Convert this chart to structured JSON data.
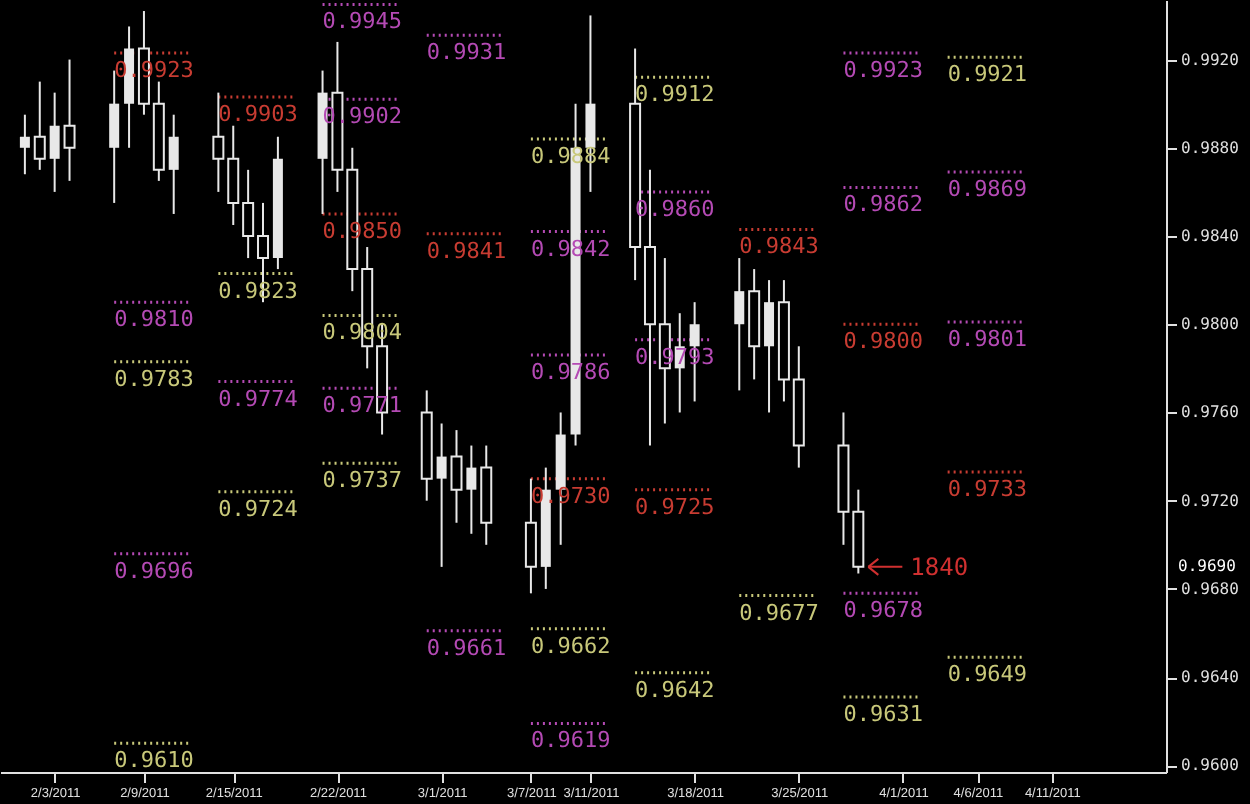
{
  "chart_data": {
    "type": "candlestick",
    "color": "#e8e8e8",
    "x": [
      "2011-02-01",
      "2011-02-02",
      "2011-02-03",
      "2011-02-04",
      "2011-02-07",
      "2011-02-08",
      "2011-02-09",
      "2011-02-10",
      "2011-02-11",
      "2011-02-14",
      "2011-02-15",
      "2011-02-16",
      "2011-02-17",
      "2011-02-18",
      "2011-02-21",
      "2011-02-22",
      "2011-02-23",
      "2011-02-24",
      "2011-02-25",
      "2011-02-28",
      "2011-03-01",
      "2011-03-02",
      "2011-03-03",
      "2011-03-04",
      "2011-03-07",
      "2011-03-08",
      "2011-03-09",
      "2011-03-10",
      "2011-03-11",
      "2011-03-14",
      "2011-03-15",
      "2011-03-16",
      "2011-03-17",
      "2011-03-18",
      "2011-03-21",
      "2011-03-22",
      "2011-03-23",
      "2011-03-24",
      "2011-03-25",
      "2011-03-28",
      "2011-03-29"
    ],
    "ohlc": [
      [
        0.988,
        0.9895,
        0.9868,
        0.9885
      ],
      [
        0.9885,
        0.991,
        0.987,
        0.9875
      ],
      [
        0.9875,
        0.9905,
        0.986,
        0.989
      ],
      [
        0.989,
        0.992,
        0.9865,
        0.988
      ],
      [
        0.988,
        0.9915,
        0.9855,
        0.99
      ],
      [
        0.99,
        0.9935,
        0.988,
        0.9925
      ],
      [
        0.9925,
        0.9942,
        0.9895,
        0.99
      ],
      [
        0.99,
        0.991,
        0.9865,
        0.987
      ],
      [
        0.987,
        0.9895,
        0.985,
        0.9885
      ],
      [
        0.9885,
        0.9905,
        0.986,
        0.9875
      ],
      [
        0.9875,
        0.989,
        0.9845,
        0.9855
      ],
      [
        0.9855,
        0.987,
        0.983,
        0.984
      ],
      [
        0.984,
        0.9855,
        0.981,
        0.983
      ],
      [
        0.983,
        0.9885,
        0.9825,
        0.9875
      ],
      [
        0.9875,
        0.9915,
        0.985,
        0.9905
      ],
      [
        0.9905,
        0.9928,
        0.986,
        0.987
      ],
      [
        0.987,
        0.988,
        0.9815,
        0.9825
      ],
      [
        0.9825,
        0.9835,
        0.978,
        0.979
      ],
      [
        0.979,
        0.98,
        0.975,
        0.976
      ],
      [
        0.976,
        0.977,
        0.972,
        0.973
      ],
      [
        0.973,
        0.9755,
        0.969,
        0.974
      ],
      [
        0.974,
        0.9752,
        0.971,
        0.9725
      ],
      [
        0.9725,
        0.9745,
        0.9705,
        0.9735
      ],
      [
        0.9735,
        0.9745,
        0.97,
        0.971
      ],
      [
        0.971,
        0.973,
        0.9678,
        0.969
      ],
      [
        0.969,
        0.9735,
        0.968,
        0.9725
      ],
      [
        0.9725,
        0.976,
        0.97,
        0.975
      ],
      [
        0.975,
        0.99,
        0.9745,
        0.988
      ],
      [
        0.988,
        0.994,
        0.986,
        0.99
      ],
      [
        0.99,
        0.9925,
        0.982,
        0.9835
      ],
      [
        0.9835,
        0.987,
        0.9745,
        0.98
      ],
      [
        0.98,
        0.983,
        0.9755,
        0.978
      ],
      [
        0.978,
        0.9805,
        0.976,
        0.979
      ],
      [
        0.979,
        0.981,
        0.9765,
        0.98
      ],
      [
        0.98,
        0.983,
        0.977,
        0.9815
      ],
      [
        0.9815,
        0.9825,
        0.9775,
        0.979
      ],
      [
        0.979,
        0.982,
        0.976,
        0.981
      ],
      [
        0.981,
        0.982,
        0.9765,
        0.9775
      ],
      [
        0.9775,
        0.979,
        0.9735,
        0.9745
      ],
      [
        0.9745,
        0.976,
        0.97,
        0.9715
      ],
      [
        0.9715,
        0.9725,
        0.9687,
        0.969
      ]
    ],
    "xlim": [
      "2011-01-31",
      "2011-04-18"
    ],
    "xticks": [
      {
        "value": "2011-02-03",
        "label": "2/3/2011"
      },
      {
        "value": "2011-02-09",
        "label": "2/9/2011"
      },
      {
        "value": "2011-02-15",
        "label": "2/15/2011"
      },
      {
        "value": "2011-02-22",
        "label": "2/22/2011"
      },
      {
        "value": "2011-03-01",
        "label": "3/1/2011"
      },
      {
        "value": "2011-03-07",
        "label": "3/7/2011"
      },
      {
        "value": "2011-03-11",
        "label": "3/11/2011"
      },
      {
        "value": "2011-03-18",
        "label": "3/18/2011"
      },
      {
        "value": "2011-03-25",
        "label": "3/25/2011"
      },
      {
        "value": "2011-04-01",
        "label": "4/1/2011"
      },
      {
        "value": "2011-04-06",
        "label": "4/6/2011"
      },
      {
        "value": "2011-04-11",
        "label": "4/11/2011"
      }
    ],
    "ylim": [
      0.9597,
      0.9947
    ],
    "yticks": [
      {
        "value": 0.96,
        "label": "0.9600"
      },
      {
        "value": 0.964,
        "label": "0.9640"
      },
      {
        "value": 0.968,
        "label": "0.9680"
      },
      {
        "value": 0.972,
        "label": "0.9720"
      },
      {
        "value": 0.976,
        "label": "0.9760"
      },
      {
        "value": 0.98,
        "label": "0.9800"
      },
      {
        "value": 0.984,
        "label": "0.9840"
      },
      {
        "value": 0.988,
        "label": "0.9880"
      },
      {
        "value": 0.992,
        "label": "0.9920"
      }
    ],
    "grid": false,
    "series": [
      {
        "type": "line",
        "line_style": "dotted",
        "color": "#c83c32",
        "x": [
          "2011-02-07",
          "2011-02-12"
        ],
        "values": [
          0.9923,
          0.9923
        ],
        "value_labels": [
          "0.9923",
          null
        ]
      },
      {
        "type": "line",
        "line_style": "dotted",
        "color": "#b44ab4",
        "x": [
          "2011-02-07",
          "2011-02-12"
        ],
        "values": [
          0.981,
          0.981
        ],
        "value_labels": [
          "0.9810",
          null
        ]
      },
      {
        "type": "line",
        "line_style": "dotted",
        "color": "#c8c87a",
        "x": [
          "2011-02-07",
          "2011-02-12"
        ],
        "values": [
          0.9783,
          0.9783
        ],
        "value_labels": [
          "0.9783",
          null
        ]
      },
      {
        "type": "line",
        "line_style": "dotted",
        "color": "#b44ab4",
        "x": [
          "2011-02-07",
          "2011-02-12"
        ],
        "values": [
          0.9696,
          0.9696
        ],
        "value_labels": [
          "0.9696",
          null
        ]
      },
      {
        "type": "line",
        "line_style": "dotted",
        "color": "#c8c87a",
        "x": [
          "2011-02-07",
          "2011-02-12"
        ],
        "values": [
          0.961,
          0.961
        ],
        "value_labels": [
          "0.9610",
          null
        ]
      },
      {
        "type": "line",
        "line_style": "dotted",
        "color": "#c83c32",
        "x": [
          "2011-02-14",
          "2011-02-19"
        ],
        "values": [
          0.9903,
          0.9903
        ],
        "value_labels": [
          "0.9903",
          null
        ]
      },
      {
        "type": "line",
        "line_style": "dotted",
        "color": "#c8c87a",
        "x": [
          "2011-02-14",
          "2011-02-19"
        ],
        "values": [
          0.9823,
          0.9823
        ],
        "value_labels": [
          "0.9823",
          null
        ]
      },
      {
        "type": "line",
        "line_style": "dotted",
        "color": "#b44ab4",
        "x": [
          "2011-02-14",
          "2011-02-19"
        ],
        "values": [
          0.9774,
          0.9774
        ],
        "value_labels": [
          "0.9774",
          null
        ]
      },
      {
        "type": "line",
        "line_style": "dotted",
        "color": "#c8c87a",
        "x": [
          "2011-02-14",
          "2011-02-19"
        ],
        "values": [
          0.9724,
          0.9724
        ],
        "value_labels": [
          "0.9724",
          null
        ]
      },
      {
        "type": "line",
        "line_style": "dotted",
        "color": "#b44ab4",
        "x": [
          "2011-02-21",
          "2011-02-26"
        ],
        "values": [
          0.9945,
          0.9945
        ],
        "value_labels": [
          "0.9945",
          null
        ]
      },
      {
        "type": "line",
        "line_style": "dotted",
        "color": "#b44ab4",
        "x": [
          "2011-02-21",
          "2011-02-26"
        ],
        "values": [
          0.9902,
          0.9902
        ],
        "value_labels": [
          "0.9902",
          null
        ]
      },
      {
        "type": "line",
        "line_style": "dotted",
        "color": "#c83c32",
        "x": [
          "2011-02-21",
          "2011-02-26"
        ],
        "values": [
          0.985,
          0.985
        ],
        "value_labels": [
          "0.9850",
          null
        ]
      },
      {
        "type": "line",
        "line_style": "dotted",
        "color": "#c8c87a",
        "x": [
          "2011-02-21",
          "2011-02-26"
        ],
        "values": [
          0.9804,
          0.9804
        ],
        "value_labels": [
          "0.9804",
          null
        ]
      },
      {
        "type": "line",
        "line_style": "dotted",
        "color": "#b44ab4",
        "x": [
          "2011-02-21",
          "2011-02-26"
        ],
        "values": [
          0.9771,
          0.9771
        ],
        "value_labels": [
          "0.9771",
          null
        ]
      },
      {
        "type": "line",
        "line_style": "dotted",
        "color": "#c8c87a",
        "x": [
          "2011-02-21",
          "2011-02-26"
        ],
        "values": [
          0.9737,
          0.9737
        ],
        "value_labels": [
          "0.9737",
          null
        ]
      },
      {
        "type": "line",
        "line_style": "dotted",
        "color": "#b44ab4",
        "x": [
          "2011-02-28",
          "2011-03-05"
        ],
        "values": [
          0.9931,
          0.9931
        ],
        "value_labels": [
          "0.9931",
          null
        ]
      },
      {
        "type": "line",
        "line_style": "dotted",
        "color": "#c83c32",
        "x": [
          "2011-02-28",
          "2011-03-05"
        ],
        "values": [
          0.9841,
          0.9841
        ],
        "value_labels": [
          "0.9841",
          null
        ]
      },
      {
        "type": "line",
        "line_style": "dotted",
        "color": "#b44ab4",
        "x": [
          "2011-02-28",
          "2011-03-05"
        ],
        "values": [
          0.9661,
          0.9661
        ],
        "value_labels": [
          "0.9661",
          null
        ]
      },
      {
        "type": "line",
        "line_style": "dotted",
        "color": "#c8c87a",
        "x": [
          "2011-03-07",
          "2011-03-12"
        ],
        "values": [
          0.9884,
          0.9884
        ],
        "value_labels": [
          "0.9884",
          null
        ]
      },
      {
        "type": "line",
        "line_style": "dotted",
        "color": "#b44ab4",
        "x": [
          "2011-03-07",
          "2011-03-12"
        ],
        "values": [
          0.9842,
          0.9842
        ],
        "value_labels": [
          "0.9842",
          null
        ]
      },
      {
        "type": "line",
        "line_style": "dotted",
        "color": "#b44ab4",
        "x": [
          "2011-03-07",
          "2011-03-12"
        ],
        "values": [
          0.9786,
          0.9786
        ],
        "value_labels": [
          "0.9786",
          null
        ]
      },
      {
        "type": "line",
        "line_style": "dotted",
        "color": "#c83c32",
        "x": [
          "2011-03-07",
          "2011-03-12"
        ],
        "values": [
          0.973,
          0.973
        ],
        "value_labels": [
          "0.9730",
          null
        ]
      },
      {
        "type": "line",
        "line_style": "dotted",
        "color": "#c8c87a",
        "x": [
          "2011-03-07",
          "2011-03-12"
        ],
        "values": [
          0.9662,
          0.9662
        ],
        "value_labels": [
          "0.9662",
          null
        ]
      },
      {
        "type": "line",
        "line_style": "dotted",
        "color": "#b44ab4",
        "x": [
          "2011-03-07",
          "2011-03-12"
        ],
        "values": [
          0.9619,
          0.9619
        ],
        "value_labels": [
          "0.9619",
          null
        ]
      },
      {
        "type": "line",
        "line_style": "dotted",
        "color": "#c8c87a",
        "x": [
          "2011-03-14",
          "2011-03-19"
        ],
        "values": [
          0.9912,
          0.9912
        ],
        "value_labels": [
          "0.9912",
          null
        ]
      },
      {
        "type": "line",
        "line_style": "dotted",
        "color": "#b44ab4",
        "x": [
          "2011-03-14",
          "2011-03-19"
        ],
        "values": [
          0.986,
          0.986
        ],
        "value_labels": [
          "0.9860",
          null
        ]
      },
      {
        "type": "line",
        "line_style": "dotted",
        "color": "#b44ab4",
        "x": [
          "2011-03-14",
          "2011-03-19"
        ],
        "values": [
          0.9793,
          0.9793
        ],
        "value_labels": [
          "0.9793",
          null
        ]
      },
      {
        "type": "line",
        "line_style": "dotted",
        "color": "#c83c32",
        "x": [
          "2011-03-14",
          "2011-03-19"
        ],
        "values": [
          0.9725,
          0.9725
        ],
        "value_labels": [
          "0.9725",
          null
        ]
      },
      {
        "type": "line",
        "line_style": "dotted",
        "color": "#c8c87a",
        "x": [
          "2011-03-14",
          "2011-03-19"
        ],
        "values": [
          0.9642,
          0.9642
        ],
        "value_labels": [
          "0.9642",
          null
        ]
      },
      {
        "type": "line",
        "line_style": "dotted",
        "color": "#c83c32",
        "x": [
          "2011-03-21",
          "2011-03-26"
        ],
        "values": [
          0.9843,
          0.9843
        ],
        "value_labels": [
          "0.9843",
          null
        ]
      },
      {
        "type": "line",
        "line_style": "dotted",
        "color": "#c8c87a",
        "x": [
          "2011-03-21",
          "2011-03-26"
        ],
        "values": [
          0.9677,
          0.9677
        ],
        "value_labels": [
          "0.9677",
          null
        ]
      },
      {
        "type": "line",
        "line_style": "dotted",
        "color": "#b44ab4",
        "x": [
          "2011-03-28",
          "2011-04-02"
        ],
        "values": [
          0.9923,
          0.9923
        ],
        "value_labels": [
          "0.9923",
          null
        ]
      },
      {
        "type": "line",
        "line_style": "dotted",
        "color": "#b44ab4",
        "x": [
          "2011-03-28",
          "2011-04-02"
        ],
        "values": [
          0.9862,
          0.9862
        ],
        "value_labels": [
          "0.9862",
          null
        ]
      },
      {
        "type": "line",
        "line_style": "dotted",
        "color": "#c83c32",
        "x": [
          "2011-03-28",
          "2011-04-02"
        ],
        "values": [
          0.98,
          0.98
        ],
        "value_labels": [
          "0.9800",
          null
        ]
      },
      {
        "type": "line",
        "line_style": "dotted",
        "color": "#b44ab4",
        "x": [
          "2011-03-28",
          "2011-04-02"
        ],
        "values": [
          0.9678,
          0.9678
        ],
        "value_labels": [
          "0.9678",
          null
        ]
      },
      {
        "type": "line",
        "line_style": "dotted",
        "color": "#c8c87a",
        "x": [
          "2011-03-28",
          "2011-04-02"
        ],
        "values": [
          0.9631,
          0.9631
        ],
        "value_labels": [
          "0.9631",
          null
        ]
      },
      {
        "type": "line",
        "line_style": "dotted",
        "color": "#c8c87a",
        "x": [
          "2011-04-04",
          "2011-04-09"
        ],
        "values": [
          0.9921,
          0.9921
        ],
        "value_labels": [
          "0.9921",
          null
        ]
      },
      {
        "type": "line",
        "line_style": "dotted",
        "color": "#b44ab4",
        "x": [
          "2011-04-04",
          "2011-04-09"
        ],
        "values": [
          0.9869,
          0.9869
        ],
        "value_labels": [
          "0.9869",
          null
        ]
      },
      {
        "type": "line",
        "line_style": "dotted",
        "color": "#b44ab4",
        "x": [
          "2011-04-04",
          "2011-04-09"
        ],
        "values": [
          0.9801,
          0.9801
        ],
        "value_labels": [
          "0.9801",
          null
        ]
      },
      {
        "type": "line",
        "line_style": "dotted",
        "color": "#c83c32",
        "x": [
          "2011-04-04",
          "2011-04-09"
        ],
        "values": [
          0.9733,
          0.9733
        ],
        "value_labels": [
          "0.9733",
          null
        ]
      },
      {
        "type": "line",
        "line_style": "dotted",
        "color": "#c8c87a",
        "x": [
          "2011-04-04",
          "2011-04-09"
        ],
        "values": [
          0.9649,
          0.9649
        ],
        "value_labels": [
          "0.9649",
          null
        ]
      }
    ],
    "annotations": [
      "1840",
      "0.9690"
    ]
  }
}
